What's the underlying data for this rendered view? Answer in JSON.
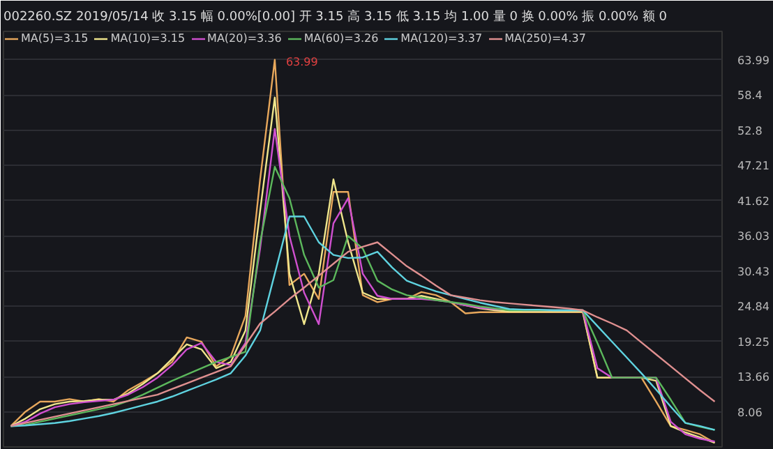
{
  "chart_data": {
    "type": "line",
    "title": "002260.SZ 2019/05/14  收 3.15  幅 0.00%[0.00]  开 3.15  高 3.15  低 3.15  均 1.00  量 0  换 0.00%  振 0.00%  额 0",
    "categories": [
      null,
      null,
      null,
      null,
      null,
      null,
      null,
      null,
      null,
      null,
      null,
      null,
      null,
      null,
      null,
      null,
      null,
      null,
      null,
      null,
      null,
      null,
      null,
      null,
      null,
      null,
      null,
      null,
      null,
      null,
      null,
      null,
      null,
      null,
      null,
      null,
      null,
      null,
      null,
      null,
      null,
      null,
      null,
      null,
      null,
      null,
      null,
      null,
      null
    ],
    "ylim": [
      2.5,
      68.5
    ],
    "yticks": [
      63.99,
      58.4,
      52.8,
      47.21,
      41.62,
      36.03,
      30.43,
      24.84,
      19.25,
      13.66,
      8.06
    ],
    "tick_labels": "y",
    "grid": "y",
    "legend": "top left",
    "marker": "none",
    "line_style": "solid",
    "annotations": [
      "63.99"
    ],
    "series": [
      {
        "name": "MA(5)=3.15",
        "color": "#e8a85c",
        "values": [
          5.8,
          8.1,
          9.7,
          9.7,
          10.1,
          9.7,
          10.1,
          9.7,
          11.5,
          12.8,
          14.2,
          16.0,
          19.9,
          19.2,
          15.3,
          16.9,
          23.3,
          45,
          63.99,
          28.2,
          30,
          26,
          43,
          43,
          26.6,
          25.5,
          26,
          26,
          27.1,
          26.6,
          25.5,
          23.7,
          23.9,
          23.9,
          23.9,
          23.9,
          23.9,
          23.9,
          23.9,
          23.9,
          13.5,
          13.5,
          13.5,
          13.5,
          9.7,
          5.8,
          5.2,
          4.5,
          3.15
        ]
      },
      {
        "name": "MA(10)=3.15",
        "color": "#f0e68c",
        "values": [
          5.8,
          7,
          8.5,
          9.3,
          9.7,
          9.8,
          10,
          10,
          11,
          12.5,
          14.2,
          16.5,
          18.8,
          18,
          15,
          16,
          21,
          40,
          58,
          30,
          22,
          30,
          45,
          35,
          27,
          26,
          26,
          26,
          26.5,
          26,
          25.5,
          25,
          24.5,
          24.2,
          24,
          24,
          24,
          24,
          24,
          24,
          13.5,
          13.5,
          13.5,
          13.5,
          13,
          5.8,
          4.8,
          4,
          3.15
        ]
      },
      {
        "name": "MA(20)=3.36",
        "color": "#d050d0",
        "values": [
          5.8,
          6.5,
          7.8,
          8.8,
          9.3,
          9.6,
          9.8,
          10,
          10.8,
          12,
          13.5,
          15.5,
          18,
          19,
          16,
          15.5,
          19,
          34,
          53,
          36,
          27,
          22,
          38,
          42,
          30,
          26.5,
          26,
          26,
          26,
          25.8,
          25.5,
          25,
          24.6,
          24.4,
          24.3,
          24.2,
          24.2,
          24.2,
          24.2,
          24.2,
          15,
          13.5,
          13.5,
          13.5,
          13.5,
          6.5,
          4.5,
          3.8,
          3.36
        ]
      },
      {
        "name": "MA(60)=3.26",
        "color": "#5cb85c",
        "values": [
          5.8,
          6,
          6.5,
          7,
          7.5,
          8,
          8.5,
          9,
          9.8,
          10.8,
          11.9,
          13,
          14,
          15,
          16,
          16.8,
          17.6,
          35,
          47,
          42,
          33,
          27.8,
          29,
          36,
          34,
          28.9,
          27.5,
          26.6,
          26.2,
          25.8,
          25.5,
          25.2,
          24.8,
          24.5,
          24.2,
          24.2,
          24.2,
          24.2,
          24.2,
          24.2,
          19,
          13.5,
          13.5,
          13.5,
          13.5,
          10,
          6.3,
          5.7,
          5.2
        ]
      },
      {
        "name": "MA(120)=3.37",
        "color": "#5fd3e0",
        "values": [
          5.8,
          5.9,
          6.1,
          6.3,
          6.6,
          7,
          7.4,
          7.9,
          8.5,
          9.1,
          9.7,
          10.5,
          11.4,
          12.3,
          13.2,
          14.2,
          17,
          21,
          30,
          39.1,
          39.1,
          35,
          33,
          32.5,
          32.6,
          33.5,
          31,
          28.9,
          28,
          27.2,
          26.6,
          26,
          25.4,
          24.9,
          24.4,
          24.3,
          24.3,
          24.2,
          24.2,
          24.2,
          21.7,
          19.2,
          16.7,
          14.2,
          11.6,
          8.9,
          6.3,
          5.8,
          5.2
        ]
      },
      {
        "name": "MA(250)=4.37",
        "color": "#e09090",
        "values": [
          5.8,
          6.3,
          6.8,
          7.3,
          7.8,
          8.3,
          8.8,
          9.3,
          9.8,
          10.3,
          10.8,
          11.7,
          12.6,
          13.5,
          14.4,
          15.3,
          18.7,
          22.1,
          24,
          26,
          27.8,
          29.7,
          31.6,
          33.5,
          34.3,
          35,
          33.1,
          31.2,
          29.7,
          28.1,
          26.6,
          26.2,
          25.8,
          25.5,
          25.3,
          25.1,
          24.9,
          24.7,
          24.5,
          24.2,
          23.1,
          22.1,
          21,
          19.1,
          17.2,
          15.3,
          13.4,
          11.5,
          9.7
        ]
      }
    ]
  }
}
